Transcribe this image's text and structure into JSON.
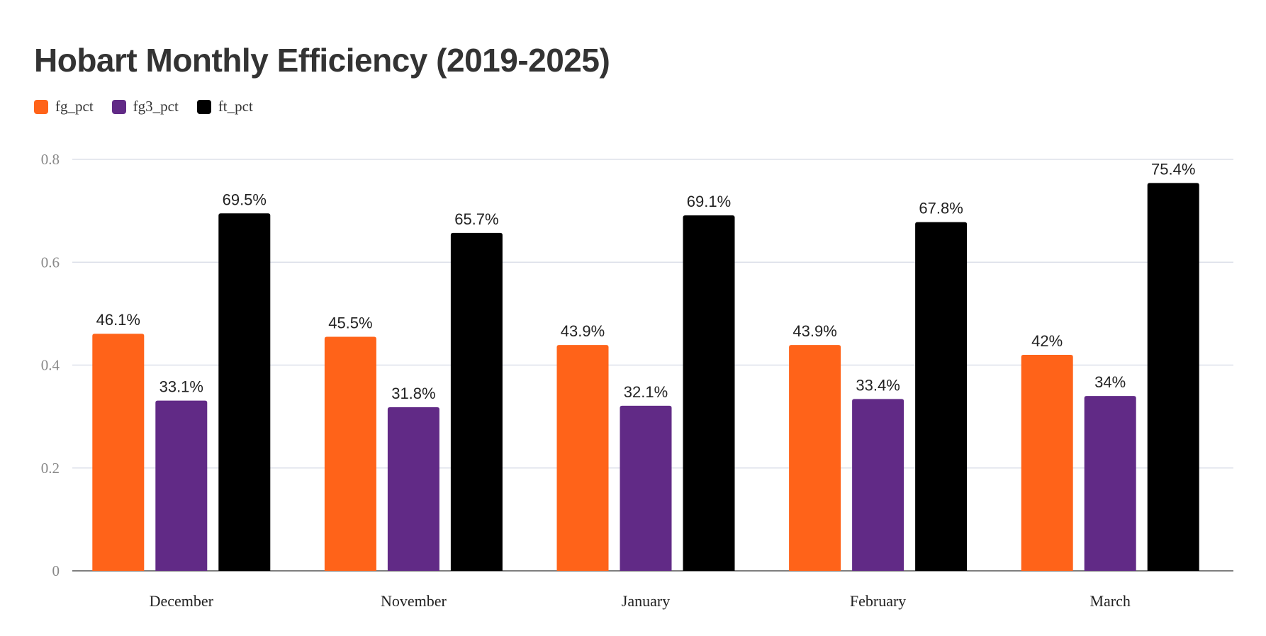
{
  "chart_data": {
    "type": "bar",
    "title": "Hobart Monthly Efficiency (2019-2025)",
    "categories": [
      "December",
      "November",
      "January",
      "February",
      "March"
    ],
    "series": [
      {
        "name": "fg_pct",
        "color": "#ff6319",
        "values": [
          0.461,
          0.455,
          0.439,
          0.439,
          0.42
        ],
        "labels": [
          "46.1%",
          "45.5%",
          "43.9%",
          "43.9%",
          "42%"
        ]
      },
      {
        "name": "fg3_pct",
        "color": "#612a86",
        "values": [
          0.331,
          0.318,
          0.321,
          0.334,
          0.34
        ],
        "labels": [
          "33.1%",
          "31.8%",
          "32.1%",
          "33.4%",
          "34%"
        ]
      },
      {
        "name": "ft_pct",
        "color": "#000000",
        "values": [
          0.695,
          0.657,
          0.691,
          0.678,
          0.754
        ],
        "labels": [
          "69.5%",
          "65.7%",
          "69.1%",
          "67.8%",
          "75.4%"
        ]
      }
    ],
    "ylim": [
      0,
      0.8
    ],
    "yticks": [
      "0",
      "0.2",
      "0.4",
      "0.6",
      "0.8"
    ],
    "xlabel": "",
    "ylabel": "",
    "grid": true,
    "legend": "top-left"
  }
}
